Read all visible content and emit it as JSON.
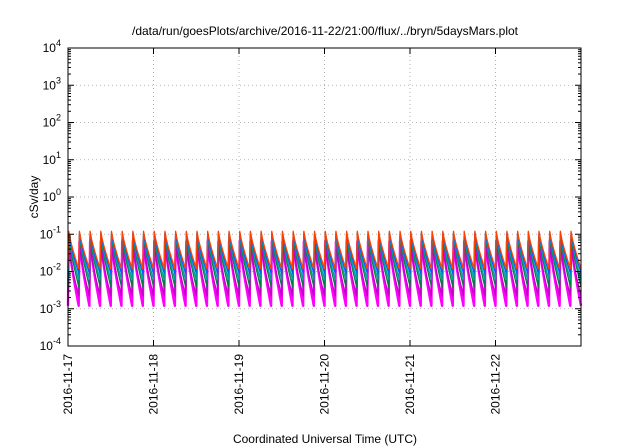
{
  "chart_data": {
    "type": "line",
    "title": "/data/run/goesPlots/archive/2016-11-22/21:00/flux/../bryn/5daysMars.plot",
    "xlabel": "Coordinated Universal Time (UTC)",
    "ylabel": "cSv/day",
    "yscale": "log",
    "ylim": [
      0.0001,
      10000
    ],
    "y_ticks": [
      {
        "base": "10",
        "exp": "4",
        "value": 10000
      },
      {
        "base": "10",
        "exp": "3",
        "value": 1000
      },
      {
        "base": "10",
        "exp": "2",
        "value": 100
      },
      {
        "base": "10",
        "exp": "1",
        "value": 10
      },
      {
        "base": "10",
        "exp": "0",
        "value": 1
      },
      {
        "base": "10",
        "exp": "-1",
        "value": 0.1
      },
      {
        "base": "10",
        "exp": "-2",
        "value": 0.01
      },
      {
        "base": "10",
        "exp": "-3",
        "value": 0.001
      },
      {
        "base": "10",
        "exp": "-4",
        "value": 0.0001
      }
    ],
    "xlim": [
      "2016-11-17",
      "2016-11-23"
    ],
    "x_ticks": [
      "2016-11-17",
      "2016-11-18",
      "2016-11-19",
      "2016-11-20",
      "2016-11-21",
      "2016-11-22"
    ],
    "grid": true,
    "cycles_per_day": 8,
    "series": [
      {
        "color": "#ff00ff",
        "peak": 0.065,
        "trough": 0.0012
      },
      {
        "color": "#c000c0",
        "peak": 0.05,
        "trough": 0.0022
      },
      {
        "color": "#008040",
        "peak": 0.09,
        "trough": 0.004
      },
      {
        "color": "#00a0a0",
        "peak": 0.1,
        "trough": 0.006
      },
      {
        "color": "#0060ff",
        "peak": 0.11,
        "trough": 0.009
      },
      {
        "color": "#ff4000",
        "peak": 0.12,
        "trough": 0.012
      }
    ]
  }
}
